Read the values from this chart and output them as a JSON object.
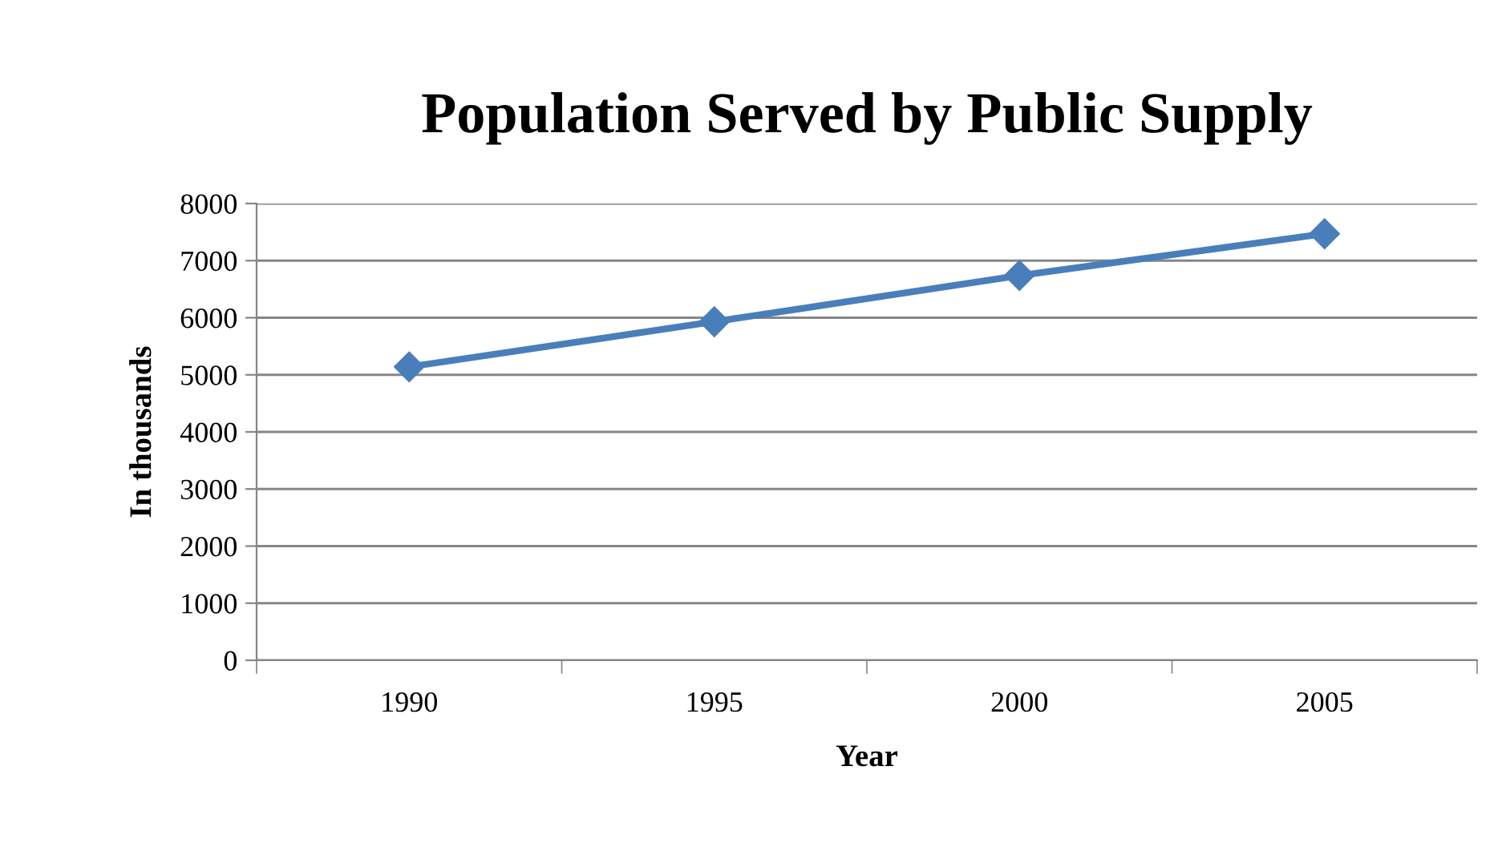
{
  "chart_data": {
    "type": "line",
    "title": "Population Served by Public Supply",
    "xlabel": "Year",
    "ylabel": "In thousands",
    "categories": [
      "1990",
      "1995",
      "2000",
      "2005"
    ],
    "series": [
      {
        "color": "#4a7ebb",
        "values": [
          5140,
          5930,
          6740,
          7470
        ]
      }
    ],
    "ylim": [
      0,
      8000
    ],
    "yticks": [
      0,
      1000,
      2000,
      3000,
      4000,
      5000,
      6000,
      7000,
      8000
    ],
    "grid": "y",
    "marker": "diamond",
    "line_style": "solid",
    "legend": false
  }
}
